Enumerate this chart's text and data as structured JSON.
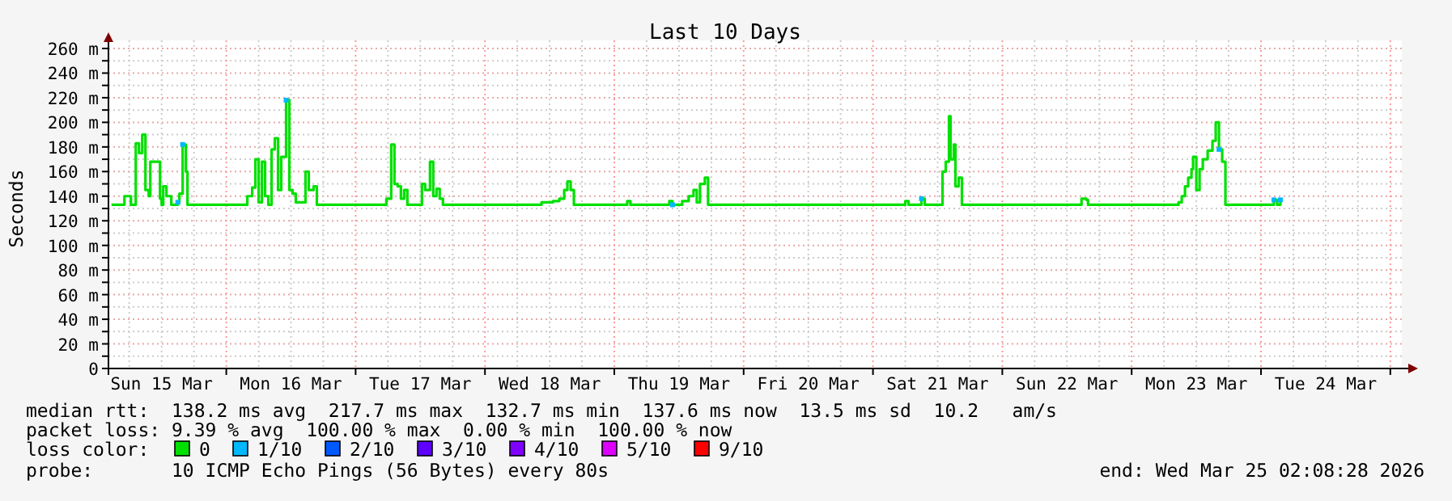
{
  "chart_data": {
    "type": "line",
    "title": "Last 10 Days",
    "ylabel": "Seconds",
    "xlim": [
      "2026-03-15T02:08",
      "2026-03-25T02:08"
    ],
    "xticks": [
      {
        "value": "2026-03-15T06:00",
        "label": null
      },
      {
        "value": "2026-03-15T12:00",
        "label": "Sun 15 Mar"
      },
      {
        "value": "2026-03-15T18:00",
        "label": null
      },
      {
        "value": "2026-03-16T00:00",
        "label": null
      },
      {
        "value": "2026-03-16T06:00",
        "label": null
      },
      {
        "value": "2026-03-16T12:00",
        "label": "Mon 16 Mar"
      },
      {
        "value": "2026-03-16T18:00",
        "label": null
      },
      {
        "value": "2026-03-17T00:00",
        "label": null
      },
      {
        "value": "2026-03-17T06:00",
        "label": null
      },
      {
        "value": "2026-03-17T12:00",
        "label": "Tue 17 Mar"
      },
      {
        "value": "2026-03-17T18:00",
        "label": null
      },
      {
        "value": "2026-03-18T00:00",
        "label": null
      },
      {
        "value": "2026-03-18T06:00",
        "label": null
      },
      {
        "value": "2026-03-18T12:00",
        "label": "Wed 18 Mar"
      },
      {
        "value": "2026-03-18T18:00",
        "label": null
      },
      {
        "value": "2026-03-19T00:00",
        "label": null
      },
      {
        "value": "2026-03-19T06:00",
        "label": null
      },
      {
        "value": "2026-03-19T12:00",
        "label": "Thu 19 Mar"
      },
      {
        "value": "2026-03-19T18:00",
        "label": null
      },
      {
        "value": "2026-03-20T00:00",
        "label": null
      },
      {
        "value": "2026-03-20T06:00",
        "label": null
      },
      {
        "value": "2026-03-20T12:00",
        "label": "Fri 20 Mar"
      },
      {
        "value": "2026-03-20T18:00",
        "label": null
      },
      {
        "value": "2026-03-21T00:00",
        "label": null
      },
      {
        "value": "2026-03-21T06:00",
        "label": null
      },
      {
        "value": "2026-03-21T12:00",
        "label": "Sat 21 Mar"
      },
      {
        "value": "2026-03-21T18:00",
        "label": null
      },
      {
        "value": "2026-03-22T00:00",
        "label": null
      },
      {
        "value": "2026-03-22T06:00",
        "label": null
      },
      {
        "value": "2026-03-22T12:00",
        "label": "Sun 22 Mar"
      },
      {
        "value": "2026-03-22T18:00",
        "label": null
      },
      {
        "value": "2026-03-23T00:00",
        "label": null
      },
      {
        "value": "2026-03-23T06:00",
        "label": null
      },
      {
        "value": "2026-03-23T12:00",
        "label": "Mon 23 Mar"
      },
      {
        "value": "2026-03-23T18:00",
        "label": null
      },
      {
        "value": "2026-03-24T00:00",
        "label": null
      },
      {
        "value": "2026-03-24T06:00",
        "label": null
      },
      {
        "value": "2026-03-24T12:00",
        "label": "Tue 24 Mar"
      },
      {
        "value": "2026-03-24T18:00",
        "label": null
      },
      {
        "value": "2026-03-25T00:00",
        "label": null
      }
    ],
    "ylim": [
      0,
      260
    ],
    "yticks": [
      0,
      {
        "value": 10,
        "label": null
      },
      {
        "value": 20,
        "label": "20 m"
      },
      {
        "value": 30,
        "label": null
      },
      {
        "value": 40,
        "label": "40 m"
      },
      {
        "value": 50,
        "label": null
      },
      {
        "value": 60,
        "label": "60 m"
      },
      {
        "value": 70,
        "label": null
      },
      {
        "value": 80,
        "label": "80 m"
      },
      {
        "value": 90,
        "label": null
      },
      {
        "value": 100,
        "label": "100 m"
      },
      {
        "value": 110,
        "label": null
      },
      {
        "value": 120,
        "label": "120 m"
      },
      {
        "value": 130,
        "label": null
      },
      {
        "value": 140,
        "label": "140 m"
      },
      {
        "value": 150,
        "label": null
      },
      {
        "value": 160,
        "label": "160 m"
      },
      {
        "value": 170,
        "label": null
      },
      {
        "value": 180,
        "label": "180 m"
      },
      {
        "value": 190,
        "label": null
      },
      {
        "value": 200,
        "label": "200 m"
      },
      {
        "value": 210,
        "label": null
      },
      {
        "value": 220,
        "label": "220 m"
      },
      {
        "value": 230,
        "label": null
      },
      {
        "value": 240,
        "label": "240 m"
      },
      {
        "value": 250,
        "label": null
      },
      {
        "value": 260,
        "label": "260 m"
      }
    ],
    "grid": true,
    "legend": "bottom",
    "legend_title": "loss color:",
    "series": [
      {
        "name": "0",
        "color": "#00e000",
        "x": [
          "2026-03-15T02:42",
          "2026-03-15T04:30",
          "2026-03-15T05:06",
          "2026-03-15T06:00",
          "2026-03-15T06:18",
          "2026-03-15T07:12",
          "2026-03-15T07:48",
          "2026-03-15T08:24",
          "2026-03-15T09:00",
          "2026-03-15T09:36",
          "2026-03-15T09:54",
          "2026-03-15T11:06",
          "2026-03-15T11:42",
          "2026-03-15T12:00",
          "2026-03-15T12:18",
          "2026-03-15T12:54",
          "2026-03-15T13:48",
          "2026-03-15T14:42",
          "2026-03-15T15:00",
          "2026-03-15T15:18",
          "2026-03-15T15:54",
          "2026-03-15T16:30",
          "2026-03-15T16:48",
          "2026-03-16T03:00",
          "2026-03-16T03:54",
          "2026-03-16T04:48",
          "2026-03-16T05:24",
          "2026-03-16T06:00",
          "2026-03-16T06:36",
          "2026-03-16T07:12",
          "2026-03-16T07:48",
          "2026-03-16T08:24",
          "2026-03-16T09:00",
          "2026-03-16T09:36",
          "2026-03-16T10:12",
          "2026-03-16T11:06",
          "2026-03-16T11:42",
          "2026-03-16T12:18",
          "2026-03-16T12:54",
          "2026-03-16T13:48",
          "2026-03-16T14:42",
          "2026-03-16T15:18",
          "2026-03-16T16:12",
          "2026-03-16T16:48",
          "2026-03-17T05:24",
          "2026-03-17T05:42",
          "2026-03-17T06:36",
          "2026-03-17T07:12",
          "2026-03-17T07:48",
          "2026-03-17T08:24",
          "2026-03-17T09:00",
          "2026-03-17T09:36",
          "2026-03-17T11:42",
          "2026-03-17T12:18",
          "2026-03-17T12:54",
          "2026-03-17T13:48",
          "2026-03-17T14:24",
          "2026-03-17T15:00",
          "2026-03-17T15:36",
          "2026-03-17T16:12",
          "2026-03-18T09:36",
          "2026-03-18T10:30",
          "2026-03-18T12:36",
          "2026-03-18T13:48",
          "2026-03-18T14:42",
          "2026-03-18T15:18",
          "2026-03-18T15:54",
          "2026-03-18T16:30",
          "2026-03-19T02:06",
          "2026-03-19T02:24",
          "2026-03-19T03:00",
          "2026-03-19T09:54",
          "2026-03-19T10:12",
          "2026-03-19T10:48",
          "2026-03-19T12:36",
          "2026-03-19T13:48",
          "2026-03-19T14:42",
          "2026-03-19T15:18",
          "2026-03-19T15:54",
          "2026-03-19T16:48",
          "2026-03-19T17:24",
          "2026-03-21T05:42",
          "2026-03-21T06:00",
          "2026-03-21T06:36",
          "2026-03-21T08:42",
          "2026-03-21T09:00",
          "2026-03-21T09:36",
          "2026-03-21T12:18",
          "2026-03-21T12:54",
          "2026-03-21T13:30",
          "2026-03-21T14:06",
          "2026-03-21T14:24",
          "2026-03-21T15:00",
          "2026-03-21T15:18",
          "2026-03-21T15:54",
          "2026-03-21T16:30",
          "2026-03-22T14:24",
          "2026-03-22T14:42",
          "2026-03-22T15:36",
          "2026-03-22T15:54",
          "2026-03-23T08:24",
          "2026-03-23T08:42",
          "2026-03-23T09:18",
          "2026-03-23T09:54",
          "2026-03-23T10:30",
          "2026-03-23T11:06",
          "2026-03-23T11:24",
          "2026-03-23T12:00",
          "2026-03-23T12:36",
          "2026-03-23T13:12",
          "2026-03-23T14:06",
          "2026-03-23T15:00",
          "2026-03-23T15:36",
          "2026-03-23T16:12",
          "2026-03-23T16:48",
          "2026-03-23T17:24",
          "2026-03-24T02:06",
          "2026-03-24T02:24",
          "2026-03-24T03:00",
          "2026-03-24T03:36"
        ],
        "values": [
          133,
          133,
          140,
          140,
          133,
          183,
          175,
          190,
          145,
          140,
          168,
          168,
          138,
          133,
          148,
          140,
          133,
          133,
          135,
          142,
          182,
          160,
          133,
          133,
          140,
          147,
          170,
          135,
          168,
          140,
          133,
          178,
          187,
          145,
          172,
          218,
          145,
          142,
          135,
          135,
          160,
          145,
          148,
          133,
          133,
          138,
          182,
          150,
          148,
          138,
          145,
          133,
          133,
          150,
          145,
          168,
          140,
          146,
          138,
          133,
          133,
          135,
          136,
          138,
          145,
          152,
          145,
          133,
          133,
          136,
          133,
          133,
          136,
          133,
          136,
          140,
          145,
          135,
          150,
          155,
          133,
          133,
          136,
          133,
          133,
          138,
          133,
          133,
          160,
          168,
          205,
          170,
          182,
          148,
          155,
          133,
          133,
          138,
          137,
          133,
          133,
          135,
          140,
          148,
          155,
          162,
          172,
          145,
          162,
          170,
          177,
          185,
          200,
          178,
          168,
          133,
          133,
          137,
          133,
          137
        ]
      },
      {
        "name": "1/10",
        "color": "#00b8ff",
        "type": "scatter",
        "x": [
          "2026-03-15T15:00",
          "2026-03-15T15:54",
          "2026-03-16T11:06",
          "2026-03-19T10:48",
          "2026-03-21T09:00",
          "2026-03-23T16:12",
          "2026-03-24T02:24",
          "2026-03-24T03:36"
        ],
        "values": [
          135,
          182,
          218,
          133,
          138,
          178,
          137,
          137
        ]
      },
      {
        "name": "2/10",
        "color": "#0059ff",
        "type": "scatter"
      },
      {
        "name": "3/10",
        "color": "#5e00ff",
        "type": "scatter"
      },
      {
        "name": "4/10",
        "color": "#7e00ff",
        "type": "scatter"
      },
      {
        "name": "5/10",
        "color": "#dd00ff",
        "type": "scatter"
      },
      {
        "name": "9/10",
        "color": "#ff0000",
        "type": "scatter"
      }
    ],
    "annotations": [
      "median rtt:  138.2 ms avg  217.7 ms max  132.7 ms min  137.6 ms now  13.5 ms sd  10.2   am/s",
      "packet loss: 9.39 % avg  100.00 % max  0.00 % min  100.00 % now",
      "probe:       10 ICMP Echo Pings (56 Bytes) every 80s",
      "end: Wed Mar 25 02:08:28 2026"
    ]
  }
}
